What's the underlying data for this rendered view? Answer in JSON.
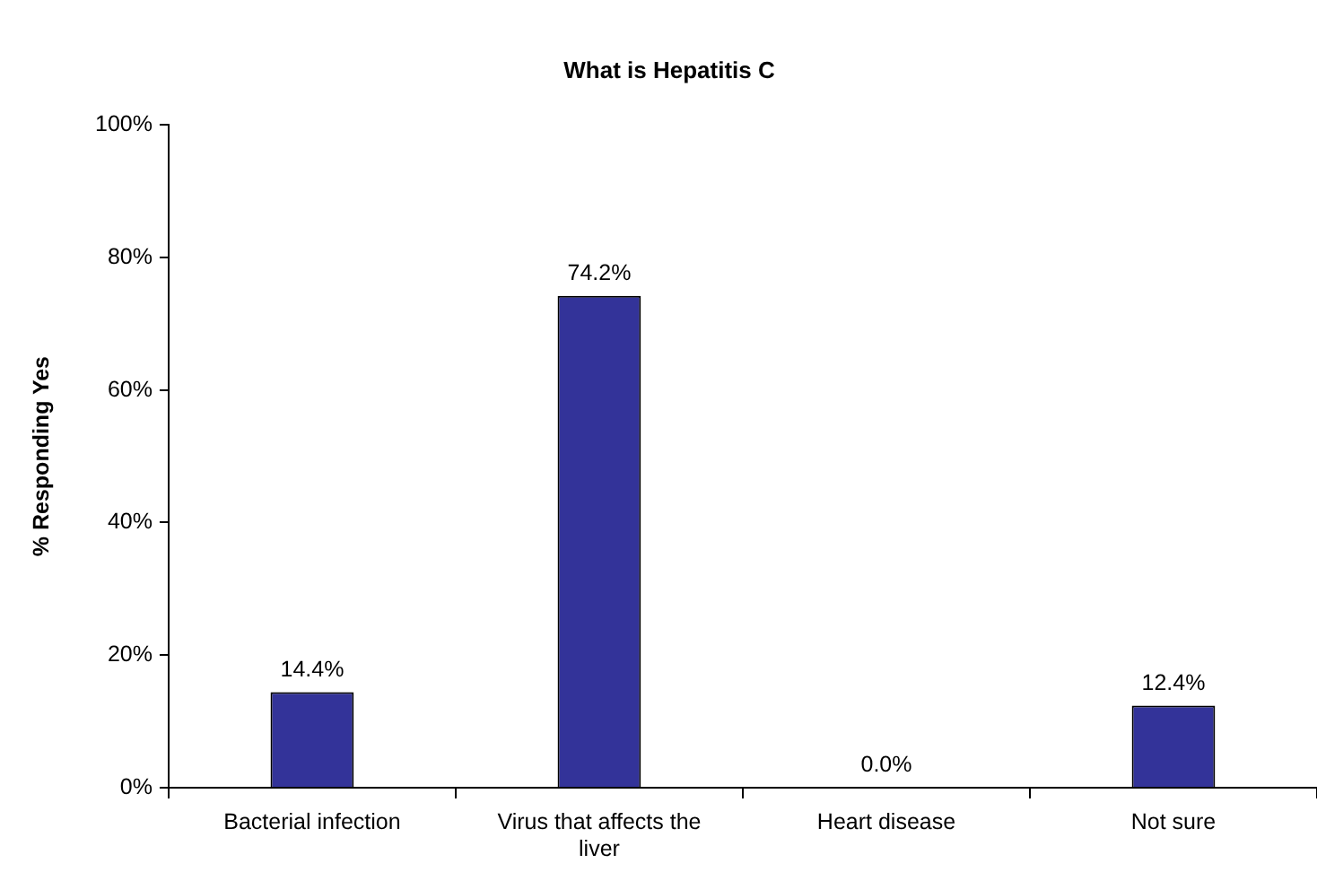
{
  "chart_data": {
    "type": "bar",
    "title": "What is Hepatitis C",
    "ylabel": "% Responding Yes",
    "categories": [
      "Bacterial infection",
      "Virus that affects the liver",
      "Heart disease",
      "Not sure"
    ],
    "values": [
      14.4,
      74.2,
      0.0,
      12.4
    ],
    "value_labels": [
      "14.4%",
      "74.2%",
      "0.0%",
      "12.4%"
    ],
    "color": "#333399",
    "ylim": [
      0,
      100
    ],
    "yticks": [
      {
        "value": 0,
        "label": "0%"
      },
      {
        "value": 20,
        "label": "20%"
      },
      {
        "value": 40,
        "label": "40%"
      },
      {
        "value": 60,
        "label": "60%"
      },
      {
        "value": 80,
        "label": "80%"
      },
      {
        "value": 100,
        "label": "100%"
      }
    ],
    "grid": false,
    "legend": false
  }
}
